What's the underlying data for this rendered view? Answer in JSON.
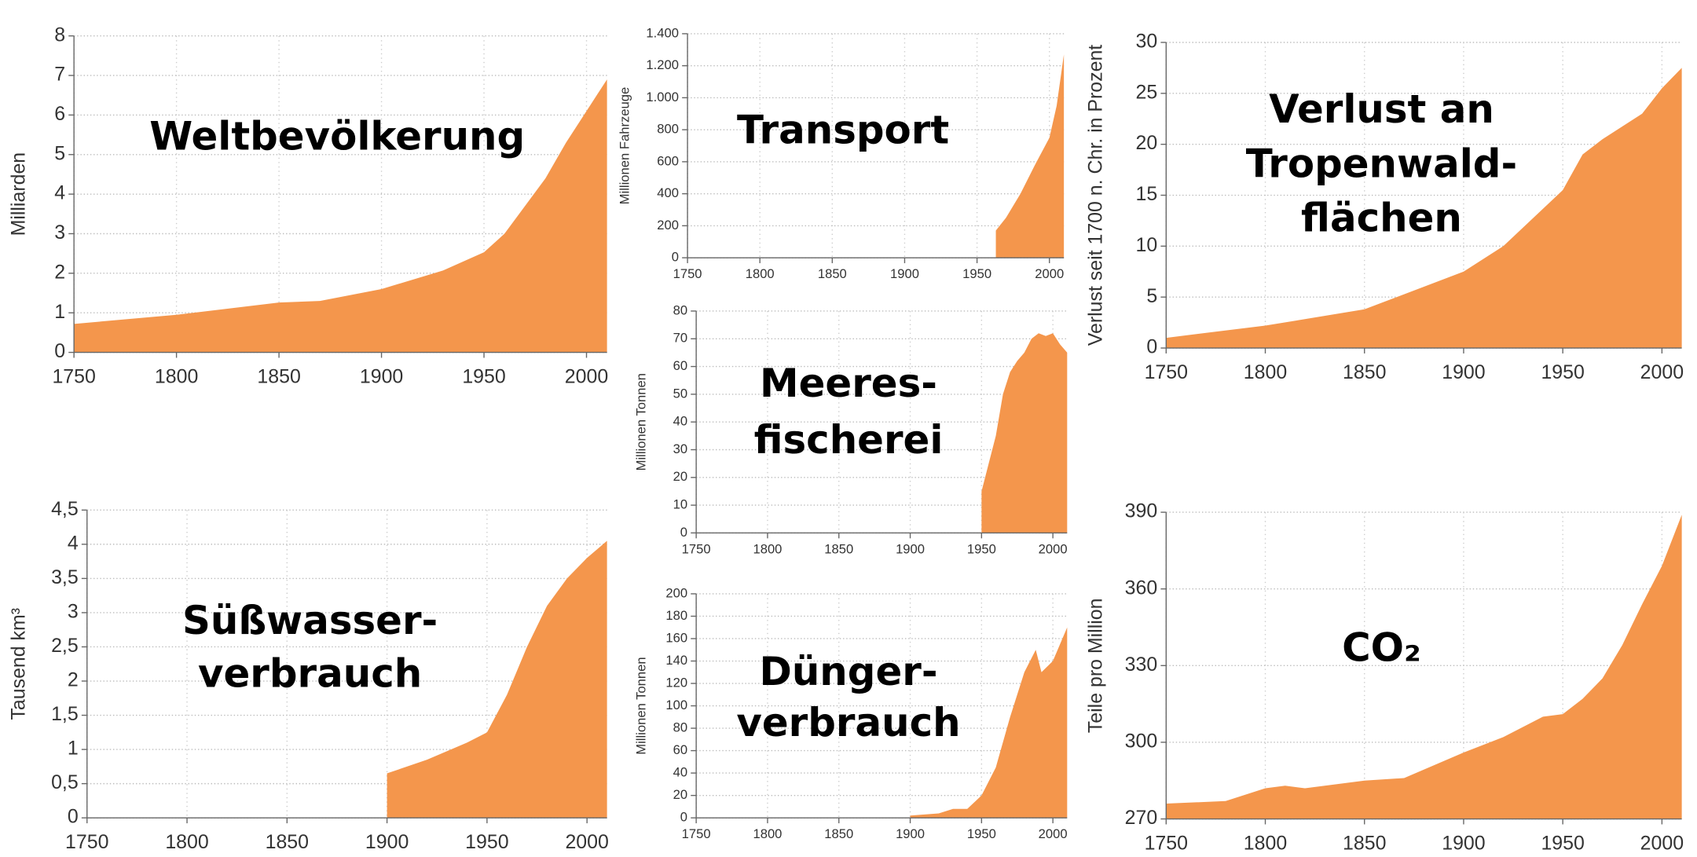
{
  "chart_data": [
    {
      "type": "area",
      "title": [
        "Weltbevölkerung"
      ],
      "ylabel": "Milliarden",
      "color": "#f4964c",
      "grid": true,
      "x": [
        1750,
        1800,
        1850,
        1870,
        1900,
        1930,
        1950,
        1960,
        1970,
        1980,
        1990,
        2000,
        2010
      ],
      "values": [
        0.72,
        0.95,
        1.26,
        1.3,
        1.6,
        2.07,
        2.53,
        3.0,
        3.7,
        4.4,
        5.3,
        6.1,
        6.9
      ],
      "xlim": [
        1750,
        2010
      ],
      "ylim": [
        0,
        8
      ],
      "xticks": [
        1750,
        1800,
        1850,
        1900,
        1950,
        2000
      ],
      "yticks": [
        0,
        1,
        2,
        3,
        4,
        5,
        6,
        7,
        8
      ]
    },
    {
      "type": "area",
      "title": [
        "Transport"
      ],
      "ylabel": "Millionen Fahrzeuge",
      "color": "#f4964c",
      "grid": true,
      "x": [
        1963,
        1970,
        1980,
        1990,
        2000,
        2005,
        2010
      ],
      "values": [
        170,
        250,
        400,
        580,
        750,
        950,
        1270
      ],
      "xlim": [
        1750,
        2010
      ],
      "ylim": [
        0,
        1400
      ],
      "xticks": [
        1750,
        1800,
        1850,
        1900,
        1950,
        2000
      ],
      "yticks": [
        0,
        200,
        400,
        600,
        800,
        {
          "value": 1000,
          "label": "1.000"
        },
        {
          "value": 1200,
          "label": "1.200"
        },
        {
          "value": 1400,
          "label": "1.400"
        }
      ]
    },
    {
      "type": "area",
      "title": [
        "Meeres-",
        "fischerei"
      ],
      "ylabel": "Millionen Tonnen",
      "color": "#f4964c",
      "grid": true,
      "x": [
        1950,
        1955,
        1960,
        1965,
        1970,
        1975,
        1980,
        1985,
        1990,
        1995,
        2000,
        2005,
        2010
      ],
      "values": [
        15,
        25,
        35,
        50,
        58,
        62,
        65,
        70,
        72,
        71,
        72,
        68,
        65
      ],
      "xlim": [
        1750,
        2010
      ],
      "ylim": [
        0,
        80
      ],
      "xticks": [
        1750,
        1800,
        1850,
        1900,
        1950,
        2000
      ],
      "yticks": [
        0,
        10,
        20,
        30,
        40,
        50,
        60,
        70,
        80
      ]
    },
    {
      "type": "area",
      "title": [
        "Dünger-",
        "verbrauch"
      ],
      "ylabel": "Millionen Tonnen",
      "color": "#f4964c",
      "grid": true,
      "x": [
        1900,
        1920,
        1930,
        1940,
        1950,
        1960,
        1970,
        1980,
        1988,
        1992,
        2000,
        2005,
        2010
      ],
      "values": [
        2,
        4,
        8,
        8,
        20,
        45,
        90,
        130,
        150,
        130,
        140,
        155,
        170
      ],
      "xlim": [
        1750,
        2010
      ],
      "ylim": [
        0,
        200
      ],
      "xticks": [
        1750,
        1800,
        1850,
        1900,
        1950,
        2000
      ],
      "yticks": [
        0,
        20,
        40,
        60,
        80,
        100,
        120,
        140,
        160,
        180,
        200
      ]
    },
    {
      "type": "area",
      "title": [
        "Verlust an",
        "Tropenwald-",
        "flächen"
      ],
      "ylabel": "Verlust seit 1700 n. Chr. in Prozent",
      "color": "#f4964c",
      "grid": true,
      "x": [
        1750,
        1800,
        1850,
        1900,
        1920,
        1950,
        1960,
        1970,
        1990,
        2000,
        2010
      ],
      "values": [
        1,
        2.2,
        3.8,
        7.5,
        10,
        15.5,
        19,
        20.5,
        23,
        25.5,
        27.5
      ],
      "xlim": [
        1750,
        2010
      ],
      "ylim": [
        0,
        30
      ],
      "xticks": [
        1750,
        1800,
        1850,
        1900,
        1950,
        2000
      ],
      "yticks": [
        0,
        5,
        10,
        15,
        20,
        25,
        30
      ]
    },
    {
      "type": "area",
      "title": [
        "CO₂"
      ],
      "ylabel": "Teile pro Million",
      "color": "#f4964c",
      "grid": true,
      "x": [
        1750,
        1780,
        1800,
        1810,
        1820,
        1850,
        1870,
        1900,
        1920,
        1940,
        1950,
        1960,
        1970,
        1980,
        1990,
        2000,
        2010
      ],
      "values": [
        276,
        277,
        282,
        283,
        282,
        285,
        286,
        296,
        302,
        310,
        311,
        317,
        325,
        338,
        354,
        369,
        389
      ],
      "xlim": [
        1750,
        2010
      ],
      "ylim": [
        270,
        390
      ],
      "xticks": [
        1750,
        1800,
        1850,
        1900,
        1950,
        2000
      ],
      "yticks": [
        270,
        300,
        330,
        360,
        390
      ]
    },
    {
      "type": "area",
      "title": [
        "Süßwasser-",
        "verbrauch"
      ],
      "ylabel": "Tausend km³",
      "color": "#f4964c",
      "grid": true,
      "x": [
        1900,
        1920,
        1940,
        1950,
        1960,
        1970,
        1980,
        1990,
        2000,
        2010
      ],
      "values": [
        0.65,
        0.85,
        1.1,
        1.25,
        1.8,
        2.5,
        3.1,
        3.5,
        3.8,
        4.05
      ],
      "xlim": [
        1750,
        2010
      ],
      "ylim": [
        0,
        4.5
      ],
      "xticks": [
        1750,
        1800,
        1850,
        1900,
        1950,
        2000
      ],
      "yticks": [
        0,
        {
          "value": 0.5,
          "label": "0,5"
        },
        1,
        {
          "value": 1.5,
          "label": "1,5"
        },
        2,
        {
          "value": 2.5,
          "label": "2,5"
        },
        3,
        {
          "value": 3.5,
          "label": "3,5"
        },
        4,
        {
          "value": 4.5,
          "label": "4,5"
        }
      ]
    }
  ]
}
